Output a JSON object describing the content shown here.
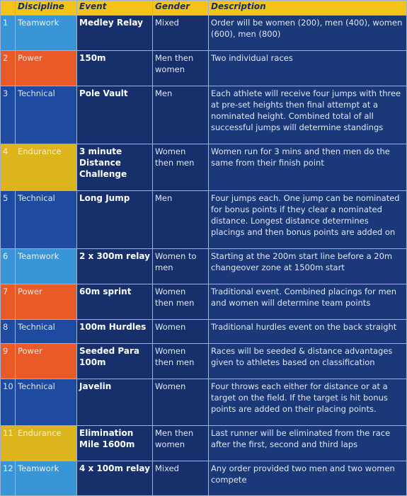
{
  "header": {
    "num": "",
    "discipline": "Discipline",
    "event": "Event",
    "gender": "Gender",
    "description": "Description"
  },
  "colors": {
    "header_bg": "#f3c417",
    "row_bg": "#17306b",
    "teamwork": "#3a95d6",
    "power": "#ea5a28",
    "technical": "#1e4aa0",
    "endurance": "#dcb51e"
  },
  "rows": [
    {
      "num": "1",
      "discipline": "Teamwork",
      "cat": "teamwork",
      "event": "Medley Relay",
      "gender": "Mixed",
      "description": "Order will be women (200), men (400), women (600), men (800)"
    },
    {
      "num": "2",
      "discipline": "Power",
      "cat": "power",
      "event": "150m",
      "gender": "Men then women",
      "description": "Two individual races"
    },
    {
      "num": "3",
      "discipline": "Technical",
      "cat": "technical",
      "event": "Pole Vault",
      "gender": "Men",
      "description": "Each athlete will receive four jumps with three at pre-set heights then final attempt at a nominated height. Combined total of all successful jumps will determine standings"
    },
    {
      "num": "4",
      "discipline": "Endurance",
      "cat": "endurance",
      "event": "3 minute Distance Challenge",
      "gender": "Women then men",
      "description": "Women run for 3 mins and then men do the same from their finish point"
    },
    {
      "num": "5",
      "discipline": "Technical",
      "cat": "technical",
      "event": "Long Jump",
      "gender": "Men",
      "description": "Four jumps each. One jump can be nominated for bonus points if they clear a nominated distance. Longest distance determines placings and then bonus points are added on"
    },
    {
      "num": "6",
      "discipline": "Teamwork",
      "cat": "teamwork",
      "event": "2 x 300m relay",
      "gender": "Women to men",
      "description": "Starting at the 200m start line before a 20m changeover zone at 1500m start"
    },
    {
      "num": "7",
      "discipline": "Power",
      "cat": "power",
      "event": "60m sprint",
      "gender": "Women then men",
      "description": "Traditional event. Combined placings for men and women will determine team points"
    },
    {
      "num": "8",
      "discipline": "Technical",
      "cat": "technical",
      "event": "100m Hurdles",
      "gender": "Women",
      "description": "Traditional hurdles event on the back straight"
    },
    {
      "num": "9",
      "discipline": "Power",
      "cat": "power",
      "event": "Seeded Para 100m",
      "gender": "Women then men",
      "description": "Races will be seeded & distance advantages given to athletes based on classification"
    },
    {
      "num": "10",
      "discipline": "Technical",
      "cat": "technical",
      "event": "Javelin",
      "gender": "Women",
      "description": "Four throws each either for distance or at a target on the field. If the target is hit bonus points are added on their placing points."
    },
    {
      "num": "11",
      "discipline": "Endurance",
      "cat": "endurance",
      "event": "Elimination Mile 1600m",
      "gender": "Men then women",
      "description": "Last runner will be eliminated from the race after the first, second and third laps"
    },
    {
      "num": "12",
      "discipline": "Teamwork",
      "cat": "teamwork",
      "event": "4 x 100m relay",
      "gender": "Mixed",
      "description": "Any order provided two men and two women compete"
    }
  ]
}
